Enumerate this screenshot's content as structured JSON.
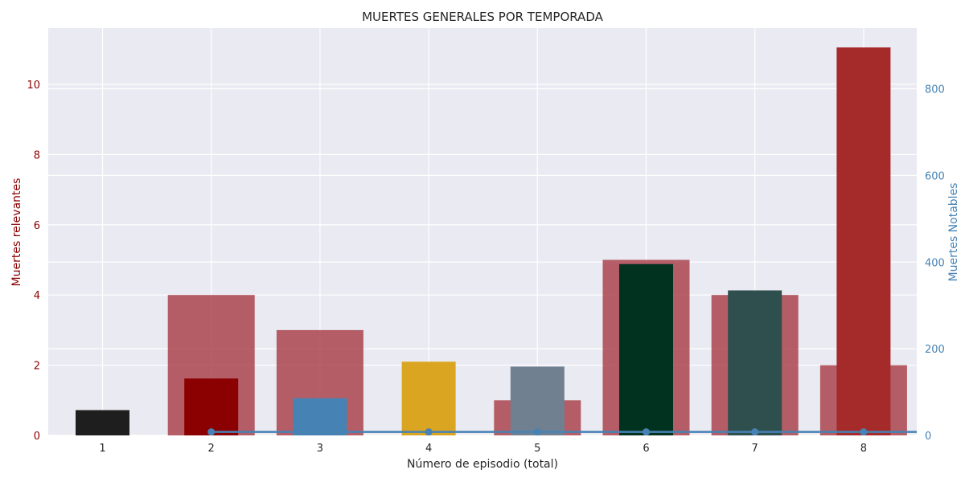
{
  "chart_data": {
    "type": "bar",
    "title": "MUERTES GENERALES POR TEMPORADA",
    "xlabel": "Número de episodio (total)",
    "ylabel_left": "Muertes relevantes",
    "ylabel_right": "Muertes Notables",
    "categories": [
      "1",
      "2",
      "3",
      "4",
      "5",
      "6",
      "7",
      "8"
    ],
    "ylim_left": [
      0,
      11.6
    ],
    "yticks_left": [
      "0",
      "2",
      "4",
      "6",
      "8",
      "10"
    ],
    "ylim_right": [
      0,
      940
    ],
    "yticks_right": [
      "0",
      "200",
      "400",
      "600",
      "800"
    ],
    "grid": true,
    "series": [
      {
        "axis": "left",
        "style": "wide-bar",
        "color": "#a4343f",
        "values": [
          0,
          4,
          3,
          0,
          1,
          5,
          4,
          2
        ]
      },
      {
        "axis": "left",
        "style": "narrow-bar",
        "colors": [
          "#1e1e1e",
          "#8b0000",
          "#4682b4",
          "#daa520",
          "#708090",
          "#013220",
          "#2f4f4f",
          "#a52a2a"
        ],
        "values": [
          0.72,
          1.62,
          1.06,
          2.1,
          1.96,
          4.88,
          4.13,
          11.05
        ]
      },
      {
        "axis": "right",
        "style": "line",
        "color": "#4682b4",
        "x": [
          2,
          3,
          4,
          5,
          6,
          7,
          8
        ],
        "values": [
          8,
          8,
          8,
          8,
          8,
          8,
          8
        ]
      }
    ],
    "colors": {
      "left_axis": "#8b0000",
      "right_axis": "#4682b4",
      "plot_bg": "#eaeaf2",
      "grid": "#ffffff"
    }
  }
}
